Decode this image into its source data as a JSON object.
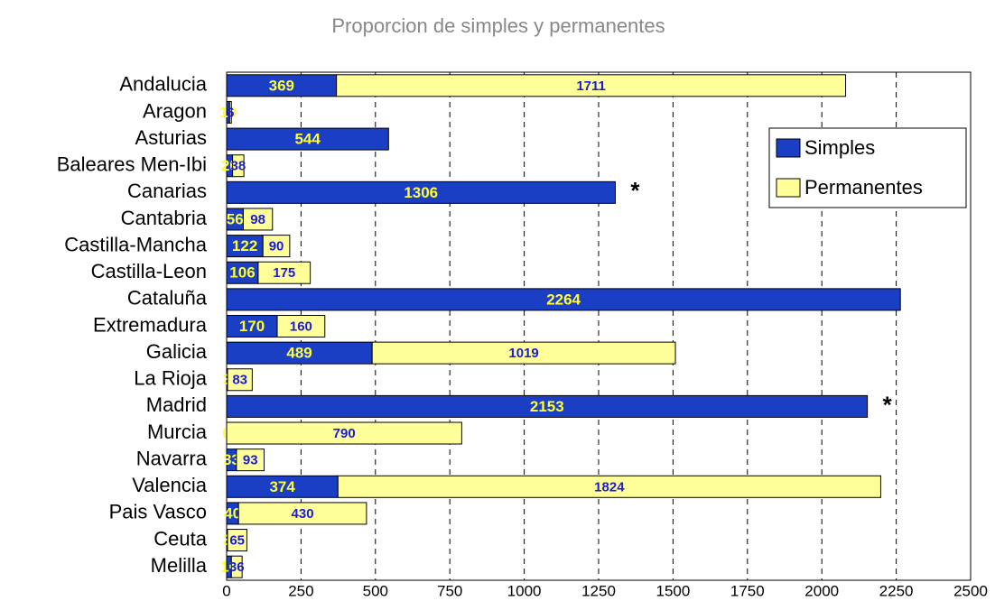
{
  "chart_data": {
    "type": "stacked-bar-horizontal",
    "title": "Proporcion de simples y permanentes",
    "categories": [
      "Andalucia",
      "Aragon",
      "Asturias",
      "Baleares Men-Ibi",
      "Canarias",
      "Cantabria",
      "Castilla-Mancha",
      "Castilla-Leon",
      "Cataluña",
      "Extremadura",
      "Galicia",
      "La Rioja",
      "Madrid",
      "Murcia",
      "Navarra",
      "Valencia",
      "Pais Vasco",
      "Ceuta",
      "Melilla"
    ],
    "series": [
      {
        "name": "Simples",
        "color": "#1b3fc4",
        "label_color": "#ffff33",
        "values": [
          369,
          10,
          544,
          20,
          1306,
          56,
          122,
          106,
          2264,
          170,
          489,
          3,
          2153,
          0,
          33,
          374,
          40,
          3,
          16
        ]
      },
      {
        "name": "Permanentes",
        "color": "#ffff99",
        "label_color": "#1b1bd8",
        "values": [
          1711,
          6,
          null,
          38,
          null,
          98,
          90,
          175,
          null,
          160,
          1019,
          83,
          null,
          790,
          93,
          1824,
          430,
          65,
          36
        ]
      }
    ],
    "annotations": [
      {
        "category": 4,
        "text": "*"
      },
      {
        "category": 12,
        "text": "*"
      }
    ],
    "xlim": [
      0,
      2500
    ],
    "xticks": [
      0,
      250,
      500,
      750,
      1000,
      1250,
      1500,
      1750,
      2000,
      2250,
      2500
    ],
    "grid": true,
    "legend": "upper right"
  }
}
